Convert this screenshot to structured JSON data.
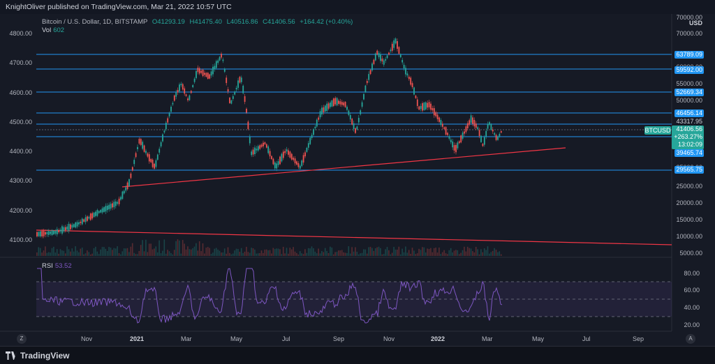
{
  "header": {
    "text": "KnightOliver published on TradingView.com, Mar 21, 2022 10:57 UTC"
  },
  "legend": {
    "symbol": "Bitcoin / U.S. Dollar, 1D, BITSTAMP",
    "O": "O41293.19",
    "H": "H41475.40",
    "L": "L40516.86",
    "C": "C41406.56",
    "change": "+164.42 (+0.40%)",
    "vol_label": "Vol",
    "vol_value": "602"
  },
  "rsi": {
    "label": "RSI",
    "value": "53.52"
  },
  "left_axis": [
    "4800.00",
    "4700.00",
    "4600.00",
    "4500.00",
    "4400.00",
    "4300.00",
    "4200.00",
    "4100.00"
  ],
  "right_axis": {
    "currency": "USD",
    "ticks": [
      "70000.00",
      "60000.00",
      "55000.00",
      "50000.00",
      "45000.00",
      "35000.00",
      "30000.00",
      "25000.00",
      "20000.00",
      "15000.00",
      "10000.00",
      "5000.00"
    ],
    "levels": [
      "63789.09",
      "59592.00",
      "52669.34",
      "46456.14",
      "43317.95",
      "39465.74",
      "29565.75"
    ]
  },
  "price_tag": {
    "ticker": "BTCUSD",
    "price": "41406.56",
    "change": "+263.27%",
    "countdown": "13:02:09"
  },
  "rsi_axis": [
    "80.00",
    "60.00",
    "40.00",
    "20.00"
  ],
  "x_axis": [
    "Nov",
    "2021",
    "Mar",
    "May",
    "Jul",
    "Sep",
    "Nov",
    "2022",
    "Mar",
    "May",
    "Jul",
    "Sep"
  ],
  "buttons": {
    "z": "Z",
    "a": "A"
  },
  "footer": {
    "brand": "TradingView"
  },
  "colors": {
    "bg": "#131722",
    "up": "#26a69a",
    "down": "#ef5350",
    "level_line": "#2196f3",
    "trend": "#f23645",
    "rsi": "#7e57c2"
  }
}
